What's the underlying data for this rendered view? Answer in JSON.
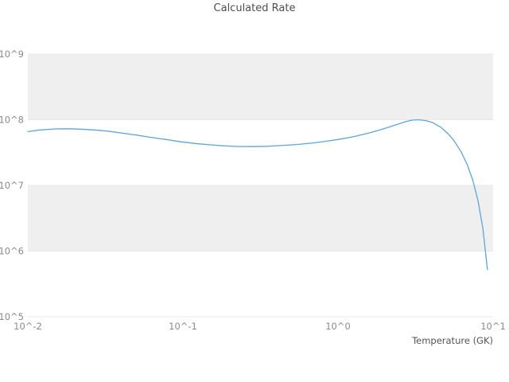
{
  "chart_data": {
    "type": "line",
    "title": "Calculated Rate",
    "xlabel": "Temperature (GK)",
    "ylabel": "",
    "x_scale": "log",
    "y_scale": "log",
    "xlim_log10": [
      -2,
      1
    ],
    "ylim_log10": [
      5,
      9
    ],
    "x_tick_log10": [
      -2,
      -1,
      0,
      1
    ],
    "x_tick_labels": [
      "10^-2",
      "10^-1",
      "10^0",
      "10^1"
    ],
    "y_tick_log10": [
      5,
      6,
      7,
      8,
      9
    ],
    "y_tick_labels": [
      "10^5",
      "10^6",
      "10^7",
      "10^8",
      "10^9"
    ],
    "grid": "horizontal-bands",
    "legend": "none",
    "band_fill": "#efefef",
    "grid_color": "#e7e7e7",
    "tick_label_color": "#8a8a8a",
    "axis_label_color": "#555555",
    "title_color": "#4d4d4d",
    "series": [
      {
        "name": "calculated-rate",
        "color": "#5da5da",
        "x": [
          0.01,
          0.012,
          0.015,
          0.018,
          0.022,
          0.027,
          0.033,
          0.04,
          0.05,
          0.062,
          0.078,
          0.098,
          0.12,
          0.15,
          0.185,
          0.23,
          0.28,
          0.35,
          0.43,
          0.54,
          0.67,
          0.83,
          1.0,
          1.25,
          1.55,
          1.9,
          2.3,
          2.7,
          3.0,
          3.3,
          3.7,
          4.1,
          4.6,
          5.1,
          5.6,
          6.2,
          6.8,
          7.4,
          8.0,
          8.6,
          9.2
        ],
        "y": [
          66000000.0,
          70000000.0,
          72500000.0,
          73000000.0,
          72000000.0,
          70000000.0,
          67000000.0,
          63000000.0,
          58500000.0,
          54000000.0,
          50000000.0,
          46000000.0,
          43500000.0,
          41500000.0,
          40000000.0,
          39200000.0,
          39000000.0,
          39500000.0,
          40500000.0,
          42000000.0,
          44000000.0,
          47000000.0,
          50000000.0,
          55000000.0,
          62000000.0,
          71000000.0,
          82000000.0,
          93000000.0,
          98500000.0,
          100000000.0,
          97000000.0,
          90000000.0,
          77000000.0,
          62000000.0,
          48000000.0,
          33000000.0,
          21000000.0,
          12000000.0,
          5800000.0,
          2200000.0,
          520000.0
        ]
      }
    ]
  }
}
